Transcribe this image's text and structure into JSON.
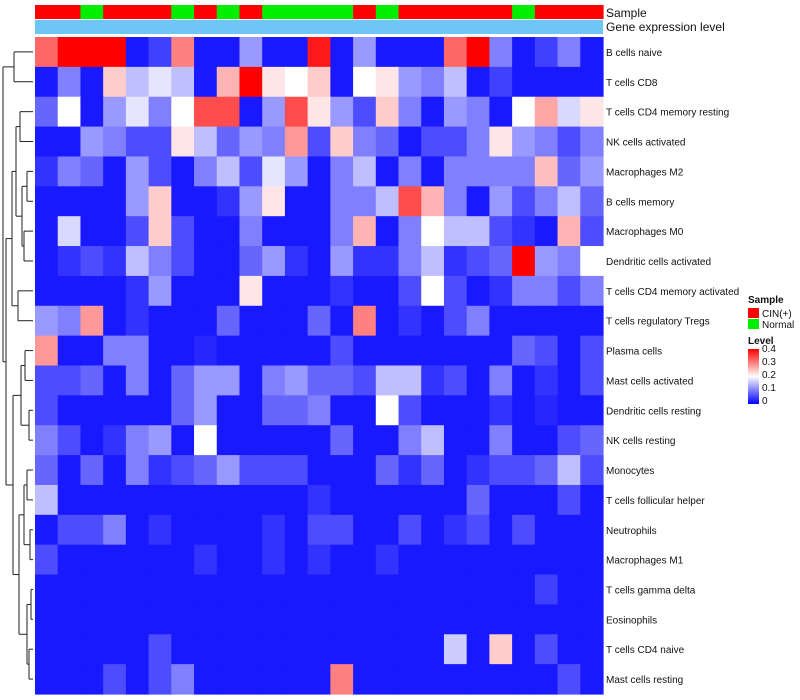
{
  "chart_data": {
    "type": "heatmap",
    "annotation_labels": [
      "Sample",
      "Gene expression level"
    ],
    "column_sample": [
      "CIN(+)",
      "CIN(+)",
      "Normal",
      "CIN(+)",
      "CIN(+)",
      "CIN(+)",
      "Normal",
      "CIN(+)",
      "Normal",
      "CIN(+)",
      "Normal",
      "Normal",
      "Normal",
      "Normal",
      "CIN(+)",
      "Normal",
      "CIN(+)",
      "CIN(+)",
      "CIN(+)",
      "CIN(+)",
      "CIN(+)",
      "Normal",
      "CIN(+)",
      "CIN(+)",
      "CIN(+)"
    ],
    "rows": [
      "B cells naive",
      "T cells CD8",
      "T cells CD4 memory resting",
      "NK cells activated",
      "Macrophages M2",
      "B cells memory",
      "Macrophages M0",
      "Dendritic cells activated",
      "T cells CD4 memory activated",
      "T cells regulatory  Tregs",
      "Plasma cells",
      "Mast cells activated",
      "Dendritic cells resting",
      "NK cells resting",
      "Monocytes",
      "T cells follicular helper",
      "Neutrophils",
      "Macrophages M1",
      "T cells gamma delta",
      "Eosinophils",
      "T cells CD4 naive",
      "Mast cells resting"
    ],
    "values": [
      [
        0.32,
        0.4,
        0.4,
        0.4,
        0.02,
        0.05,
        0.3,
        0.02,
        0.02,
        0.12,
        0.02,
        0.02,
        0.38,
        0.02,
        0.12,
        0.02,
        0.02,
        0.02,
        0.32,
        0.4,
        0.1,
        0.02,
        0.05,
        0.1,
        0.02
      ],
      [
        0.02,
        0.1,
        0.02,
        0.24,
        0.15,
        0.18,
        0.15,
        0.02,
        0.26,
        0.4,
        0.22,
        0.2,
        0.24,
        0.02,
        0.2,
        0.22,
        0.12,
        0.1,
        0.15,
        0.02,
        0.05,
        0.02,
        0.02,
        0.02,
        0.02
      ],
      [
        0.08,
        0.2,
        0.02,
        0.12,
        0.18,
        0.1,
        0.2,
        0.34,
        0.34,
        0.02,
        0.12,
        0.34,
        0.22,
        0.12,
        0.06,
        0.24,
        0.1,
        0.02,
        0.12,
        0.1,
        0.02,
        0.2,
        0.27,
        0.17,
        0.22
      ],
      [
        0.02,
        0.02,
        0.12,
        0.1,
        0.06,
        0.06,
        0.22,
        0.15,
        0.08,
        0.12,
        0.1,
        0.28,
        0.06,
        0.24,
        0.1,
        0.08,
        0.02,
        0.06,
        0.06,
        0.1,
        0.22,
        0.12,
        0.1,
        0.06,
        0.1
      ],
      [
        0.04,
        0.1,
        0.08,
        0.02,
        0.12,
        0.06,
        0.02,
        0.1,
        0.15,
        0.06,
        0.18,
        0.12,
        0.02,
        0.1,
        0.15,
        0.02,
        0.1,
        0.02,
        0.1,
        0.1,
        0.1,
        0.1,
        0.25,
        0.08,
        0.12
      ],
      [
        0.02,
        0.02,
        0.02,
        0.02,
        0.12,
        0.24,
        0.02,
        0.02,
        0.04,
        0.12,
        0.22,
        0.02,
        0.02,
        0.1,
        0.1,
        0.15,
        0.34,
        0.26,
        0.1,
        0.02,
        0.12,
        0.06,
        0.1,
        0.15,
        0.08
      ],
      [
        0.02,
        0.17,
        0.02,
        0.02,
        0.06,
        0.24,
        0.06,
        0.02,
        0.02,
        0.1,
        0.02,
        0.02,
        0.02,
        0.1,
        0.26,
        0.02,
        0.1,
        0.2,
        0.15,
        0.15,
        0.06,
        0.04,
        0.02,
        0.26,
        0.06
      ],
      [
        0.02,
        0.04,
        0.06,
        0.04,
        0.15,
        0.1,
        0.06,
        0.02,
        0.02,
        0.08,
        0.12,
        0.04,
        0.02,
        0.12,
        0.04,
        0.04,
        0.1,
        0.15,
        0.04,
        0.06,
        0.08,
        0.4,
        0.12,
        0.1,
        0.2
      ],
      [
        0.02,
        0.02,
        0.02,
        0.02,
        0.04,
        0.12,
        0.02,
        0.02,
        0.02,
        0.22,
        0.02,
        0.02,
        0.02,
        0.04,
        0.02,
        0.02,
        0.06,
        0.2,
        0.06,
        0.02,
        0.04,
        0.1,
        0.1,
        0.06,
        0.1
      ],
      [
        0.12,
        0.1,
        0.28,
        0.02,
        0.04,
        0.02,
        0.02,
        0.02,
        0.08,
        0.02,
        0.02,
        0.02,
        0.08,
        0.02,
        0.3,
        0.02,
        0.04,
        0.02,
        0.06,
        0.1,
        0.02,
        0.02,
        0.02,
        0.02,
        0.02
      ],
      [
        0.28,
        0.02,
        0.02,
        0.1,
        0.1,
        0.02,
        0.02,
        0.03,
        0.02,
        0.02,
        0.02,
        0.02,
        0.02,
        0.06,
        0.02,
        0.02,
        0.02,
        0.02,
        0.02,
        0.02,
        0.02,
        0.08,
        0.06,
        0.02,
        0.06
      ],
      [
        0.06,
        0.06,
        0.08,
        0.02,
        0.1,
        0.02,
        0.08,
        0.12,
        0.12,
        0.02,
        0.1,
        0.12,
        0.08,
        0.08,
        0.06,
        0.15,
        0.15,
        0.04,
        0.06,
        0.02,
        0.1,
        0.02,
        0.04,
        0.02,
        0.06
      ],
      [
        0.06,
        0.02,
        0.02,
        0.02,
        0.02,
        0.02,
        0.08,
        0.12,
        0.02,
        0.02,
        0.08,
        0.08,
        0.1,
        0.02,
        0.02,
        0.2,
        0.06,
        0.02,
        0.02,
        0.02,
        0.04,
        0.02,
        0.03,
        0.02,
        0.02
      ],
      [
        0.1,
        0.06,
        0.02,
        0.04,
        0.1,
        0.12,
        0.02,
        0.2,
        0.02,
        0.02,
        0.02,
        0.02,
        0.02,
        0.08,
        0.02,
        0.02,
        0.1,
        0.15,
        0.02,
        0.02,
        0.1,
        0.02,
        0.02,
        0.06,
        0.08
      ],
      [
        0.08,
        0.02,
        0.08,
        0.02,
        0.1,
        0.04,
        0.06,
        0.08,
        0.12,
        0.06,
        0.06,
        0.06,
        0.02,
        0.02,
        0.02,
        0.08,
        0.04,
        0.08,
        0.02,
        0.04,
        0.06,
        0.06,
        0.08,
        0.15,
        0.06
      ],
      [
        0.15,
        0.02,
        0.02,
        0.02,
        0.02,
        0.02,
        0.02,
        0.02,
        0.02,
        0.02,
        0.02,
        0.02,
        0.04,
        0.02,
        0.02,
        0.02,
        0.02,
        0.02,
        0.02,
        0.08,
        0.02,
        0.02,
        0.02,
        0.06,
        0.02
      ],
      [
        0.02,
        0.06,
        0.06,
        0.1,
        0.02,
        0.04,
        0.02,
        0.02,
        0.02,
        0.02,
        0.04,
        0.02,
        0.06,
        0.06,
        0.02,
        0.02,
        0.06,
        0.02,
        0.04,
        0.06,
        0.02,
        0.06,
        0.02,
        0.02,
        0.02
      ],
      [
        0.06,
        0.02,
        0.02,
        0.02,
        0.02,
        0.02,
        0.02,
        0.04,
        0.02,
        0.02,
        0.04,
        0.02,
        0.04,
        0.02,
        0.02,
        0.04,
        0.02,
        0.02,
        0.02,
        0.02,
        0.02,
        0.02,
        0.02,
        0.02,
        0.02
      ],
      [
        0.02,
        0.02,
        0.02,
        0.02,
        0.02,
        0.02,
        0.02,
        0.02,
        0.02,
        0.02,
        0.02,
        0.02,
        0.02,
        0.02,
        0.02,
        0.02,
        0.02,
        0.02,
        0.02,
        0.02,
        0.02,
        0.02,
        0.05,
        0.02,
        0.02
      ],
      [
        0.02,
        0.02,
        0.02,
        0.02,
        0.02,
        0.02,
        0.02,
        0.02,
        0.02,
        0.02,
        0.02,
        0.02,
        0.02,
        0.02,
        0.02,
        0.02,
        0.02,
        0.02,
        0.02,
        0.02,
        0.02,
        0.02,
        0.02,
        0.02,
        0.02
      ],
      [
        0.02,
        0.02,
        0.02,
        0.02,
        0.02,
        0.06,
        0.02,
        0.02,
        0.02,
        0.02,
        0.02,
        0.02,
        0.02,
        0.02,
        0.02,
        0.02,
        0.02,
        0.02,
        0.16,
        0.02,
        0.24,
        0.02,
        0.06,
        0.02,
        0.02
      ],
      [
        0.02,
        0.02,
        0.02,
        0.06,
        0.02,
        0.06,
        0.1,
        0.02,
        0.02,
        0.02,
        0.02,
        0.02,
        0.02,
        0.3,
        0.02,
        0.02,
        0.02,
        0.02,
        0.02,
        0.02,
        0.02,
        0.02,
        0.02,
        0.06,
        0.02
      ]
    ],
    "colorscale": {
      "min": 0,
      "mid": 0.2,
      "max": 0.4,
      "low": "#0000ff",
      "mid_color": "#ffffff",
      "high": "#ff0000"
    },
    "legend": {
      "sample_title": "Sample",
      "sample_items": [
        {
          "label": "CIN(+)",
          "color": "#ff0000"
        },
        {
          "label": "Normal",
          "color": "#00ee00"
        }
      ],
      "level_title": "Level",
      "level_ticks": [
        "0.4",
        "0.3",
        "0.2",
        "0.1",
        "0"
      ]
    },
    "expression_bar_color": "#6ec6f5"
  }
}
